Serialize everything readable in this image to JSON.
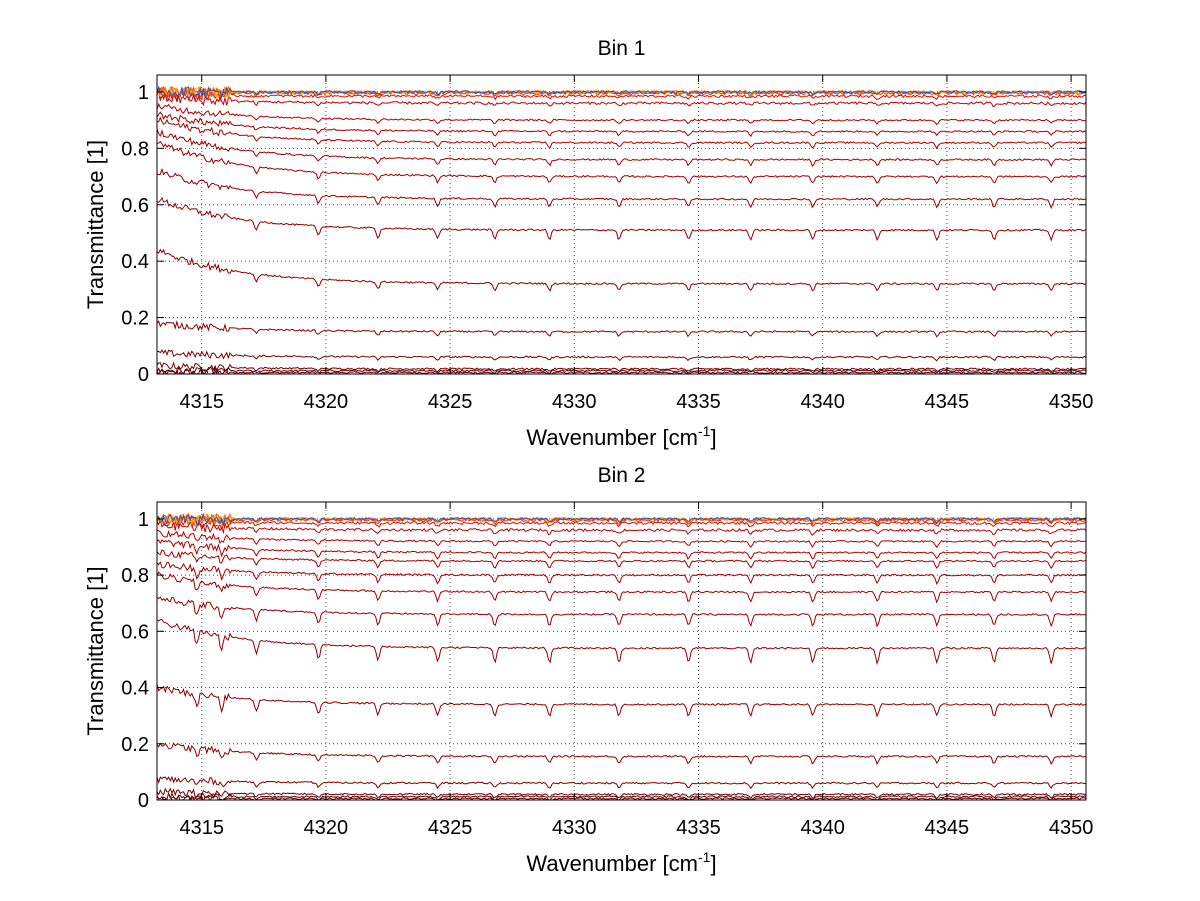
{
  "chart_data": [
    {
      "type": "line",
      "title": "Bin 1",
      "xlabel": "Wavenumber [cm",
      "xlabel_superscript": "-1",
      "xlabel_suffix": "]",
      "ylabel": "Transmittance [1]",
      "xlim": [
        4313.2,
        4350.6
      ],
      "ylim": [
        0,
        1.06
      ],
      "xticks": [
        4315,
        4320,
        4325,
        4330,
        4335,
        4340,
        4345,
        4350
      ],
      "yticks": [
        0,
        0.2,
        0.4,
        0.6,
        0.8,
        1
      ],
      "ytick_labels": [
        "0",
        "0.2",
        "0.4",
        "0.6",
        "0.8",
        "1"
      ],
      "grid": true,
      "absorption_lines": [
        4317.2,
        4319.7,
        4322.1,
        4324.5,
        4326.8,
        4329.0,
        4331.8,
        4334.6,
        4337.1,
        4339.6,
        4342.2,
        4344.6,
        4346.9,
        4349.2
      ],
      "line_strength": 1.0,
      "series": [
        {
          "start": 0.005,
          "end": 0.005,
          "color": "#5c0000"
        },
        {
          "start": 0.01,
          "end": 0.012,
          "color": "#5c0000"
        },
        {
          "start": 0.03,
          "end": 0.018,
          "color": "#6e0000"
        },
        {
          "start": 0.075,
          "end": 0.06,
          "color": "#7a0000"
        },
        {
          "start": 0.18,
          "end": 0.15,
          "color": "#8a0000"
        },
        {
          "start": 0.44,
          "end": 0.32,
          "color": "#8a0000"
        },
        {
          "start": 0.62,
          "end": 0.51,
          "color": "#900000"
        },
        {
          "start": 0.72,
          "end": 0.62,
          "color": "#960000"
        },
        {
          "start": 0.82,
          "end": 0.7,
          "color": "#9c0000"
        },
        {
          "start": 0.86,
          "end": 0.76,
          "color": "#a00000"
        },
        {
          "start": 0.9,
          "end": 0.82,
          "color": "#a40000"
        },
        {
          "start": 0.92,
          "end": 0.86,
          "color": "#aa0000"
        },
        {
          "start": 0.95,
          "end": 0.9,
          "color": "#b00000"
        },
        {
          "start": 0.98,
          "end": 0.96,
          "color": "#c00000"
        },
        {
          "start": 0.99,
          "end": 0.985,
          "color": "#d81000"
        },
        {
          "start": 1.0,
          "end": 0.995,
          "color": "#ee3000"
        },
        {
          "start": 1.0,
          "end": 1.0,
          "color": "#ff4400"
        },
        {
          "start": 1.0,
          "end": 1.0,
          "color": "#ff6600"
        },
        {
          "start": 1.0,
          "end": 1.0,
          "color": "#ffaa00"
        },
        {
          "start": 1.0,
          "end": 1.0,
          "color": "#3050c0"
        }
      ]
    },
    {
      "type": "line",
      "title": "Bin 2",
      "xlabel": "Wavenumber [cm",
      "xlabel_superscript": "-1",
      "xlabel_suffix": "]",
      "ylabel": "Transmittance [1]",
      "xlim": [
        4313.2,
        4350.6
      ],
      "ylim": [
        0,
        1.06
      ],
      "xticks": [
        4315,
        4320,
        4325,
        4330,
        4335,
        4340,
        4345,
        4350
      ],
      "yticks": [
        0,
        0.2,
        0.4,
        0.6,
        0.8,
        1
      ],
      "ytick_labels": [
        "0",
        "0.2",
        "0.4",
        "0.6",
        "0.8",
        "1"
      ],
      "grid": true,
      "absorption_lines": [
        4314.8,
        4315.8,
        4317.2,
        4319.7,
        4322.1,
        4324.5,
        4326.8,
        4329.0,
        4331.8,
        4334.6,
        4337.1,
        4339.6,
        4342.2,
        4344.6,
        4346.9,
        4349.2
      ],
      "line_strength": 1.6,
      "series": [
        {
          "start": 0.005,
          "end": 0.005,
          "color": "#5c0000"
        },
        {
          "start": 0.012,
          "end": 0.012,
          "color": "#5c0000"
        },
        {
          "start": 0.03,
          "end": 0.02,
          "color": "#6e0000"
        },
        {
          "start": 0.075,
          "end": 0.06,
          "color": "#7a0000"
        },
        {
          "start": 0.2,
          "end": 0.155,
          "color": "#8a0000"
        },
        {
          "start": 0.4,
          "end": 0.34,
          "color": "#8a0000"
        },
        {
          "start": 0.64,
          "end": 0.54,
          "color": "#900000"
        },
        {
          "start": 0.72,
          "end": 0.66,
          "color": "#960000"
        },
        {
          "start": 0.8,
          "end": 0.74,
          "color": "#9c0000"
        },
        {
          "start": 0.84,
          "end": 0.8,
          "color": "#a00000"
        },
        {
          "start": 0.88,
          "end": 0.85,
          "color": "#a40000"
        },
        {
          "start": 0.92,
          "end": 0.88,
          "color": "#aa0000"
        },
        {
          "start": 0.95,
          "end": 0.92,
          "color": "#b00000"
        },
        {
          "start": 0.98,
          "end": 0.96,
          "color": "#c00000"
        },
        {
          "start": 0.99,
          "end": 0.985,
          "color": "#d81000"
        },
        {
          "start": 1.0,
          "end": 0.995,
          "color": "#ee3000"
        },
        {
          "start": 1.0,
          "end": 1.0,
          "color": "#ff4400"
        },
        {
          "start": 1.0,
          "end": 1.0,
          "color": "#ff6600"
        },
        {
          "start": 1.0,
          "end": 1.0,
          "color": "#ffaa00"
        },
        {
          "start": 1.0,
          "end": 1.0,
          "color": "#3050c0"
        }
      ]
    }
  ]
}
